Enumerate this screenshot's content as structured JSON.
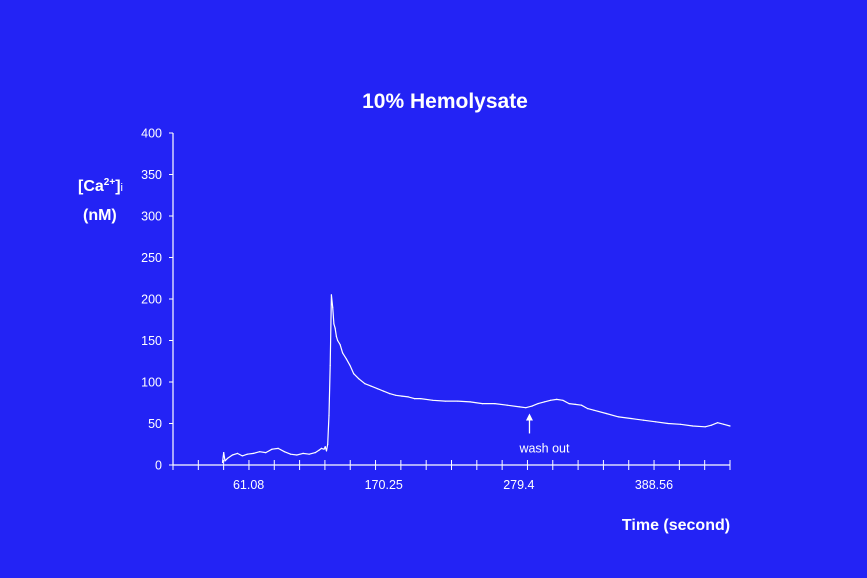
{
  "chart_data": {
    "type": "line",
    "title": "10% Hemolysate",
    "xlabel": "Time (second)",
    "ylabel_main": "[Ca",
    "ylabel_sup": "2+",
    "ylabel_close": "]",
    "ylabel_sub": "i",
    "ylabel_unit": "(nM)",
    "xlim": [
      0,
      450
    ],
    "ylim": [
      0,
      400
    ],
    "y_ticks": [
      0,
      50,
      100,
      150,
      200,
      250,
      300,
      350,
      400
    ],
    "x_tick_labels": [
      {
        "value": 61.08,
        "label": "61.08"
      },
      {
        "value": 170.25,
        "label": "170.25"
      },
      {
        "value": 279.4,
        "label": "279.4"
      },
      {
        "value": 388.56,
        "label": "388.56"
      }
    ],
    "minor_tick_count": 22,
    "annotation": {
      "text": "wash out",
      "x": 288,
      "y_arrow_tip": 62,
      "y_arrow_base": 38
    },
    "series": [
      {
        "x": [
          40,
          41,
          42,
          44,
          48,
          52,
          56,
          60,
          65,
          70,
          75,
          80,
          85,
          90,
          95,
          100,
          105,
          110,
          115,
          118,
          120,
          122,
          123,
          124,
          125,
          126,
          127,
          128,
          129,
          130,
          131,
          132,
          133,
          135,
          137,
          140,
          143,
          146,
          150,
          155,
          160,
          165,
          170,
          175,
          180,
          185,
          190,
          195,
          200,
          210,
          220,
          230,
          240,
          250,
          260,
          270,
          280,
          285,
          290,
          295,
          300,
          305,
          310,
          315,
          320,
          325,
          330,
          335,
          340,
          350,
          360,
          370,
          380,
          390,
          400,
          410,
          420,
          430,
          435,
          440,
          445,
          450
        ],
        "y": [
          3,
          15,
          5,
          8,
          12,
          14,
          11,
          13,
          14,
          16,
          15,
          19,
          20,
          16,
          13,
          12,
          14,
          13,
          15,
          18,
          20,
          19,
          22,
          17,
          25,
          60,
          120,
          205,
          190,
          170,
          165,
          155,
          150,
          145,
          135,
          128,
          120,
          110,
          104,
          98,
          95,
          92,
          89,
          86,
          84,
          83,
          82,
          80,
          80,
          78,
          77,
          77,
          76,
          74,
          74,
          72,
          70,
          69,
          71,
          74,
          76,
          78,
          79,
          78,
          74,
          73,
          72,
          68,
          66,
          62,
          58,
          56,
          54,
          52,
          50,
          49,
          47,
          46,
          48,
          51,
          49,
          47
        ]
      }
    ]
  }
}
